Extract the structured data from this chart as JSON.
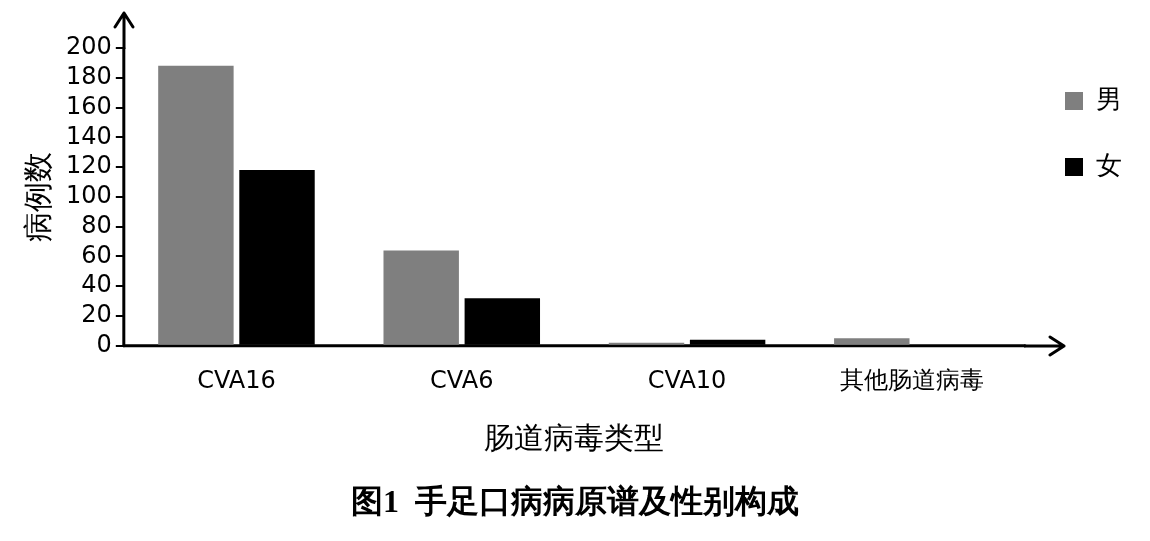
{
  "chart_data": {
    "type": "bar",
    "title": "图1  手足口病病原谱及性别构成",
    "xlabel": "肠道病毒类型",
    "ylabel": "病例数",
    "categories": [
      "CVA16",
      "CVA6",
      "CVA10",
      "其他肠道病毒"
    ],
    "series": [
      {
        "name": "男",
        "color": "#7f7f7f",
        "values": [
          188,
          64,
          2,
          5
        ]
      },
      {
        "name": "女",
        "color": "#000000",
        "values": [
          118,
          32,
          4,
          0
        ]
      }
    ],
    "ylim": [
      0,
      200
    ],
    "yticks": [
      0,
      20,
      40,
      60,
      80,
      100,
      120,
      140,
      160,
      180,
      200
    ],
    "grid": false,
    "legend": "top right"
  }
}
